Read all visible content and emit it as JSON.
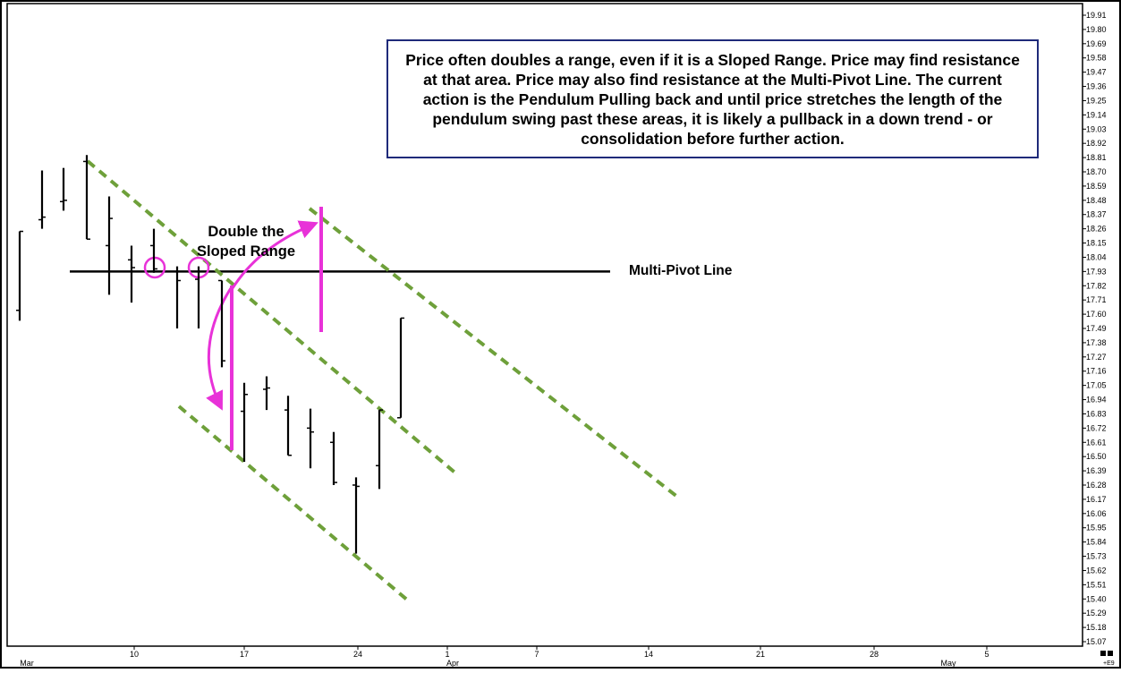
{
  "chart_data": {
    "type": "bar",
    "subtype": "ohlc",
    "x_tick_labels": [
      "10",
      "17",
      "24",
      "1",
      "7",
      "14",
      "21",
      "28",
      "5"
    ],
    "month_labels": [
      "Mar",
      "Apr",
      "May"
    ],
    "y_tick_labels": [
      "19.91",
      "19.80",
      "19.69",
      "19.58",
      "19.47",
      "19.36",
      "19.25",
      "19.14",
      "19.03",
      "18.92",
      "18.81",
      "18.70",
      "18.59",
      "18.48",
      "18.37",
      "18.26",
      "18.15",
      "18.04",
      "17.93",
      "17.82",
      "17.71",
      "17.60",
      "17.49",
      "17.38",
      "17.27",
      "17.16",
      "17.05",
      "16.94",
      "16.83",
      "16.72",
      "16.61",
      "16.50",
      "16.39",
      "16.28",
      "16.17",
      "16.06",
      "15.95",
      "15.84",
      "15.73",
      "15.62",
      "15.51",
      "15.40",
      "15.29",
      "15.18",
      "15.07"
    ],
    "ylim": [
      15.04,
      19.93
    ],
    "corner_label": "+E9",
    "bars": [
      {
        "date": "2025-03-04",
        "open": 17.63,
        "high": 18.24,
        "low": 17.55,
        "close": 18.24
      },
      {
        "date": "2025-03-05",
        "open": 18.33,
        "high": 18.71,
        "low": 18.26,
        "close": 18.35
      },
      {
        "date": "2025-03-06",
        "open": 18.47,
        "high": 18.73,
        "low": 18.4,
        "close": 18.48
      },
      {
        "date": "2025-03-07",
        "open": 18.78,
        "high": 18.83,
        "low": 18.18,
        "close": 18.18
      },
      {
        "date": "2025-03-10",
        "open": 18.13,
        "high": 18.51,
        "low": 17.75,
        "close": 18.34
      },
      {
        "date": "2025-03-11",
        "open": 18.02,
        "high": 18.13,
        "low": 17.69,
        "close": 17.96
      },
      {
        "date": "2025-03-12",
        "open": 18.13,
        "high": 18.26,
        "low": 17.92,
        "close": 17.95
      },
      {
        "date": "2025-03-13",
        "open": 17.93,
        "high": 17.97,
        "low": 17.49,
        "close": 17.86
      },
      {
        "date": "2025-03-14",
        "open": 17.87,
        "high": 17.97,
        "low": 17.49,
        "close": 17.93
      },
      {
        "date": "2025-03-17",
        "open": 17.86,
        "high": 17.86,
        "low": 17.19,
        "close": 17.24
      },
      {
        "date": "2025-03-18",
        "open": 16.85,
        "high": 17.07,
        "low": 16.46,
        "close": 16.98
      },
      {
        "date": "2025-03-19",
        "open": 17.02,
        "high": 17.12,
        "low": 16.86,
        "close": 17.03
      },
      {
        "date": "2025-03-20",
        "open": 16.86,
        "high": 16.97,
        "low": 16.51,
        "close": 16.51
      },
      {
        "date": "2025-03-21",
        "open": 16.72,
        "high": 16.87,
        "low": 16.41,
        "close": 16.69
      },
      {
        "date": "2025-03-24",
        "open": 16.61,
        "high": 16.69,
        "low": 16.28,
        "close": 16.3
      },
      {
        "date": "2025-03-25",
        "open": 16.28,
        "high": 16.34,
        "low": 15.75,
        "close": 16.27
      },
      {
        "date": "2025-03-26",
        "open": 16.43,
        "high": 16.86,
        "low": 16.25,
        "close": 16.86
      },
      {
        "date": "2025-03-27",
        "open": 16.8,
        "high": 17.57,
        "low": 16.8,
        "close": 17.57
      }
    ],
    "annotations": {
      "callout_text": "Price often doubles a range, even if it is a Sloped Range. Price may find resistance at that area. Price may also find resistance at the Multi-Pivot Line. The current action is the Pendulum Pulling back and until price stretches the length of the pendulum swing past these areas, it is likely a pullback in a down trend - or consolidation before further action.",
      "double_range_line1": "Double the",
      "double_range_line2": "Sloped Range",
      "pivot_label": "Multi-Pivot Line",
      "pivot_level": 17.93
    },
    "colors": {
      "channel": "#6ea03a",
      "highlight": "#e832d8",
      "pivot": "#000000",
      "callout_border": "#1f2a7a"
    }
  }
}
